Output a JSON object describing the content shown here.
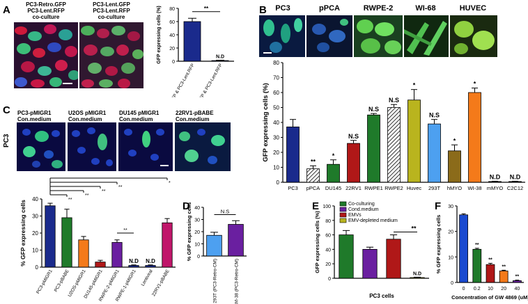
{
  "panel_letters": {
    "a": "A",
    "b": "B",
    "c": "C",
    "d": "D",
    "e": "E",
    "f": "F"
  },
  "panel_a": {
    "image_titles": [
      [
        "PC3-Retro.GFP",
        "PC3-Lent.RFP",
        "co-culture"
      ],
      [
        "PC3-Lent.GFP",
        "PC3-Lent.RFP",
        "co-culture"
      ]
    ]
  },
  "panel_b": {
    "image_titles": [
      "PC3",
      "pPCA",
      "RWPE-2",
      "WI-68",
      "HUVEC"
    ]
  },
  "panel_c": {
    "image_titles": [
      [
        "PC3-pMIGR1",
        "Con.medium"
      ],
      [
        "U2OS pMIGR1",
        "Con.medium"
      ],
      [
        "DU145 pMIGR1",
        "Con.medium"
      ],
      [
        "22RV1-pBABE",
        "Con.medium"
      ]
    ],
    "side_label": "PC3"
  },
  "colors": {
    "navy": "#1a2a8c",
    "green": "#1f7a2a",
    "orange": "#f47a1a",
    "darkred": "#b01818",
    "purple": "#6a1fa0",
    "magenta": "#c0166a",
    "olive": "#b9b41e",
    "skyblue": "#4da0f0",
    "brown": "#8b6b1a",
    "blue": "#1a4ad0"
  },
  "chart_data": [
    {
      "id": "A",
      "type": "bar",
      "categories": [
        "PC3-Retro.GFP & PC3-Lent.RFP",
        "PC3-Lent.GFP & PC3-Lent.RFP"
      ],
      "values": [
        60,
        1
      ],
      "errors": [
        5,
        0.5
      ],
      "colors": [
        "#1a2a8c",
        "#1a2a8c"
      ],
      "ylabel": "GFP expressing cells (%)",
      "ylim": [
        0,
        80
      ],
      "yticks": [
        0,
        20,
        40,
        60,
        80
      ],
      "annotations": [
        "",
        "N.D"
      ],
      "bracket": "**"
    },
    {
      "id": "B",
      "type": "bar",
      "categories": [
        "PC3",
        "pPCA",
        "DU145",
        "22RV1",
        "RWPE1",
        "RWPE2",
        "Huvec",
        "293T",
        "hMYO",
        "WI-38",
        "mMYO",
        "C2C12"
      ],
      "values": [
        37,
        9,
        12,
        26,
        45,
        50,
        55,
        39,
        21,
        60,
        0.5,
        0.5
      ],
      "errors": [
        5,
        2,
        3,
        2,
        1,
        2,
        7,
        3,
        4,
        3,
        0.2,
        0.2
      ],
      "colors": [
        "#1a2a8c",
        "#ffffff",
        "#1f7a2a",
        "#b01818",
        "#1f7a2a",
        "#ffffff",
        "#b9b41e",
        "#4da0f0",
        "#8b6b1a",
        "#f47a1a",
        "#000000",
        "#000000"
      ],
      "hatched": [
        false,
        true,
        false,
        false,
        false,
        true,
        false,
        false,
        false,
        false,
        false,
        false
      ],
      "annotations": [
        "",
        "**",
        "*",
        "N.S",
        "N.S",
        "N.S",
        "*",
        "N.S",
        "*",
        "*",
        "N.D",
        "N.D"
      ],
      "ylabel": "GFP expressing cells  (%)",
      "ylim": [
        0,
        80
      ],
      "yticks": [
        0,
        10,
        20,
        30,
        40,
        50,
        60,
        70,
        80
      ]
    },
    {
      "id": "C",
      "type": "bar",
      "categories": [
        "PC3-pMIGR1",
        "PC3-pBABE",
        "U2OS-pMIGR1",
        "DU145-pMIGR1",
        "RWPE-2-pMIGR1",
        "RWPE-1-pMIGR1",
        "Lentiviral",
        "22RV1-pBABE"
      ],
      "values": [
        36,
        29,
        16,
        3,
        14.5,
        1,
        1,
        26
      ],
      "errors": [
        1.5,
        5,
        2,
        1,
        1.5,
        0.3,
        0.3,
        2.5
      ],
      "colors": [
        "#1a2a8c",
        "#1f7a2a",
        "#f47a1a",
        "#b01818",
        "#6a1fa0",
        "#1a2a8c",
        "#1a2a8c",
        "#c0166a"
      ],
      "annotations": [
        "",
        "",
        "",
        "",
        "",
        "N.D",
        "N.D",
        ""
      ],
      "brackets": [
        "**",
        "**",
        "**",
        "**",
        "*"
      ],
      "bracket2": "**",
      "ylabel": "% GFP expressing cells",
      "ylim": [
        0,
        40
      ],
      "yticks": [
        0,
        10,
        20,
        30,
        40
      ]
    },
    {
      "id": "D",
      "type": "bar",
      "categories": [
        "293T (PC3-Retro-CM)",
        "WI-38 (PC3-Retro-CM)"
      ],
      "values": [
        17,
        26
      ],
      "errors": [
        2.5,
        3
      ],
      "colors": [
        "#4da0f0",
        "#6a1fa0"
      ],
      "ylabel": "% GFP expressing cells",
      "ylim": [
        0,
        40
      ],
      "yticks": [
        0,
        10,
        20,
        30,
        40
      ],
      "bracket": "N.S"
    },
    {
      "id": "E",
      "type": "bar",
      "categories": [
        "Co-culturing",
        "Cond.medium",
        "EMVs",
        "EMV-depleted medium"
      ],
      "values": [
        60,
        40,
        54,
        1
      ],
      "errors": [
        6,
        3,
        6,
        0.5
      ],
      "colors": [
        "#1f7a2a",
        "#6a1fa0",
        "#b01818",
        "#b9b41e"
      ],
      "legend": [
        "Co-culturing",
        "Cond.medium",
        "EMVs",
        "EMV-depleted medium"
      ],
      "annotations": [
        "",
        "",
        "",
        "N.D"
      ],
      "bracket": "**",
      "ylabel": "GFP expressing cells (%)",
      "xlabel": "PC3 cells",
      "ylim": [
        0,
        100
      ],
      "yticks": [
        0,
        20,
        40,
        60,
        80,
        100
      ]
    },
    {
      "id": "F",
      "type": "bar",
      "categories": [
        "0",
        "0.2",
        "10",
        "20",
        "40"
      ],
      "values": [
        26.5,
        13,
        7,
        4.5,
        0.7
      ],
      "errors": [
        0.4,
        0.4,
        0.5,
        0.3,
        0.2
      ],
      "colors": [
        "#1a4ad0",
        "#1f7a2a",
        "#b01818",
        "#f47a1a",
        "#6a1fa0"
      ],
      "annotations": [
        "",
        "**",
        "**",
        "**",
        "**"
      ],
      "ylabel": "% GFP expressing cells",
      "xlabel": "Concentration of GW 4869 (uM)",
      "ylim": [
        0,
        30
      ],
      "yticks": [
        0,
        10,
        20,
        30
      ]
    }
  ]
}
